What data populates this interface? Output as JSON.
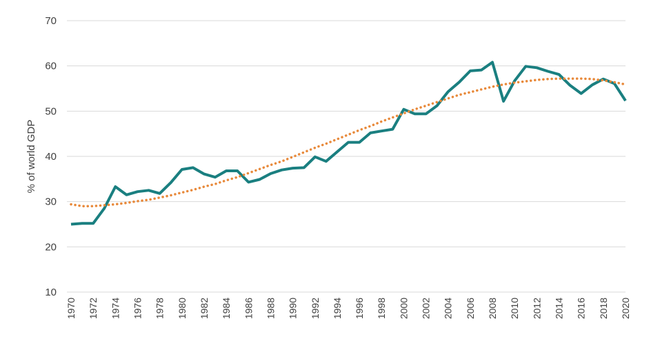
{
  "chart_data": {
    "type": "line",
    "title": "",
    "xlabel": "",
    "ylabel": "% of world GDP",
    "ylim": [
      10,
      70
    ],
    "yticks": [
      10,
      20,
      30,
      40,
      50,
      60,
      70
    ],
    "xlim": [
      1970,
      2020
    ],
    "xtick_labels": [
      "1970",
      "1972",
      "1974",
      "1976",
      "1978",
      "1980",
      "1982",
      "1984",
      "1986",
      "1988",
      "1990",
      "1992",
      "1994",
      "1996",
      "1998",
      "2000",
      "2002",
      "2004",
      "2006",
      "2008",
      "2010",
      "2012",
      "2014",
      "2016",
      "2018",
      "2020"
    ],
    "grid": true,
    "legend": "none",
    "x": [
      1970,
      1971,
      1972,
      1973,
      1974,
      1975,
      1976,
      1977,
      1978,
      1979,
      1980,
      1981,
      1982,
      1983,
      1984,
      1985,
      1986,
      1987,
      1988,
      1989,
      1990,
      1991,
      1992,
      1993,
      1994,
      1995,
      1996,
      1997,
      1998,
      1999,
      2000,
      2001,
      2002,
      2003,
      2004,
      2005,
      2006,
      2007,
      2008,
      2009,
      2010,
      2011,
      2012,
      2013,
      2014,
      2015,
      2016,
      2017,
      2018,
      2019,
      2020
    ],
    "series": [
      {
        "style": "solid",
        "color": "#1a7f80",
        "values": [
          25.0,
          25.2,
          25.2,
          28.5,
          33.3,
          31.5,
          32.2,
          32.5,
          31.8,
          34.2,
          37.1,
          37.5,
          36.1,
          35.4,
          36.8,
          36.8,
          34.3,
          34.9,
          36.2,
          37.0,
          37.4,
          37.5,
          39.9,
          38.9,
          41.0,
          43.1,
          43.1,
          45.2,
          45.6,
          46.0,
          50.4,
          49.4,
          49.4,
          51.2,
          54.3,
          56.4,
          58.9,
          59.1,
          60.8,
          52.2,
          56.7,
          59.9,
          59.6,
          58.8,
          58.1,
          55.7,
          53.9,
          55.8,
          57.1,
          56.1,
          52.3
        ]
      },
      {
        "style": "dotted",
        "color": "#e8893a",
        "values": [
          29.4,
          29.0,
          29.0,
          29.2,
          29.4,
          29.7,
          30.1,
          30.4,
          30.9,
          31.4,
          32.0,
          32.6,
          33.3,
          33.9,
          34.7,
          35.4,
          36.3,
          37.2,
          38.1,
          38.9,
          39.9,
          40.9,
          41.9,
          42.8,
          43.8,
          44.8,
          45.8,
          46.7,
          47.7,
          48.6,
          49.5,
          50.4,
          51.2,
          52.0,
          52.8,
          53.6,
          54.2,
          54.8,
          55.4,
          55.9,
          56.3,
          56.6,
          56.9,
          57.1,
          57.2,
          57.2,
          57.2,
          57.1,
          56.8,
          56.4,
          55.9
        ]
      }
    ]
  }
}
